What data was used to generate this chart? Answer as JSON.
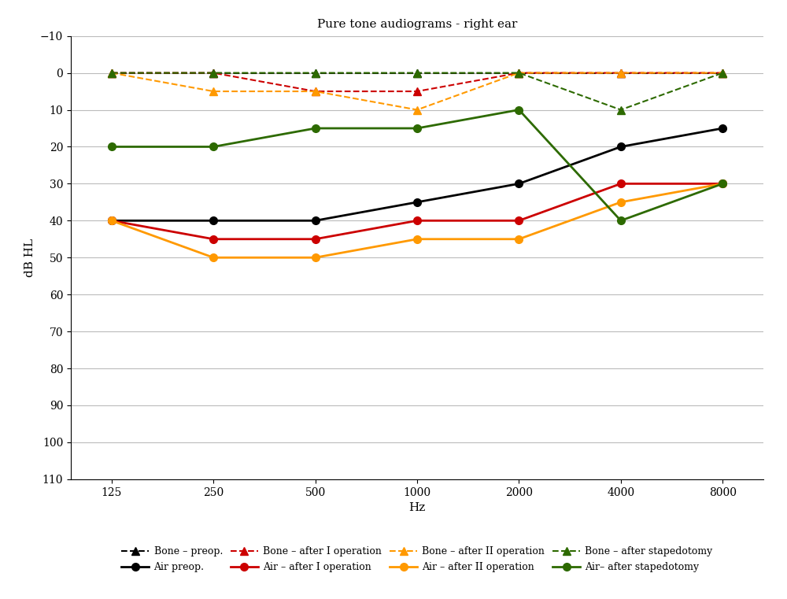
{
  "title": "Pure tone audiograms - right ear",
  "xlabel": "Hz",
  "ylabel": "dB HL",
  "freqs": [
    125,
    250,
    500,
    1000,
    2000,
    4000,
    8000
  ],
  "ylim": [
    -10,
    110
  ],
  "yticks": [
    -10,
    0,
    10,
    20,
    30,
    40,
    50,
    60,
    70,
    80,
    90,
    100,
    110
  ],
  "series": [
    {
      "label": "Bone – preop.",
      "color": "#000000",
      "linestyle": "--",
      "marker": "^",
      "markersize": 7,
      "linewidth": 1.5,
      "values": [
        0,
        0,
        0,
        0,
        0,
        0,
        0
      ],
      "markerfill": "#000000"
    },
    {
      "label": "Air preop.",
      "color": "#000000",
      "linestyle": "-",
      "marker": "o",
      "markersize": 7,
      "linewidth": 2,
      "values": [
        40,
        40,
        40,
        35,
        30,
        20,
        15
      ],
      "markerfill": "#000000"
    },
    {
      "label": "Bone – after I operation",
      "color": "#cc0000",
      "linestyle": "--",
      "marker": "^",
      "markersize": 7,
      "linewidth": 1.5,
      "values": [
        0,
        0,
        5,
        5,
        0,
        0,
        0
      ],
      "markerfill": "#cc0000"
    },
    {
      "label": "Air – after I operation",
      "color": "#cc0000",
      "linestyle": "-",
      "marker": "o",
      "markersize": 7,
      "linewidth": 2,
      "values": [
        40,
        45,
        45,
        40,
        40,
        30,
        30
      ],
      "markerfill": "#cc0000"
    },
    {
      "label": "Bone – after II operation",
      "color": "#ff9900",
      "linestyle": "--",
      "marker": "^",
      "markersize": 7,
      "linewidth": 1.5,
      "values": [
        0,
        5,
        5,
        10,
        0,
        0,
        0
      ],
      "markerfill": "#ff9900"
    },
    {
      "label": "Air – after II operation",
      "color": "#ff9900",
      "linestyle": "-",
      "marker": "o",
      "markersize": 7,
      "linewidth": 2,
      "values": [
        40,
        50,
        50,
        45,
        45,
        35,
        30
      ],
      "markerfill": "#ff9900"
    },
    {
      "label": "Bone – after stapedotomy",
      "color": "#2d6a00",
      "linestyle": "--",
      "marker": "^",
      "markersize": 7,
      "linewidth": 1.5,
      "values": [
        0,
        0,
        0,
        0,
        0,
        10,
        0
      ],
      "markerfill": "#2d6a00"
    },
    {
      "label": "Air– after stapedotomy",
      "color": "#2d6a00",
      "linestyle": "-",
      "marker": "o",
      "markersize": 7,
      "linewidth": 2,
      "values": [
        20,
        20,
        15,
        15,
        10,
        40,
        30
      ],
      "markerfill": "#2d6a00"
    }
  ],
  "legend_order": [
    0,
    1,
    2,
    3,
    4,
    5,
    6,
    7
  ],
  "legend_ncol": 4,
  "background_color": "#ffffff",
  "grid_color": "#bbbbbb",
  "font_family": "DejaVu Serif"
}
